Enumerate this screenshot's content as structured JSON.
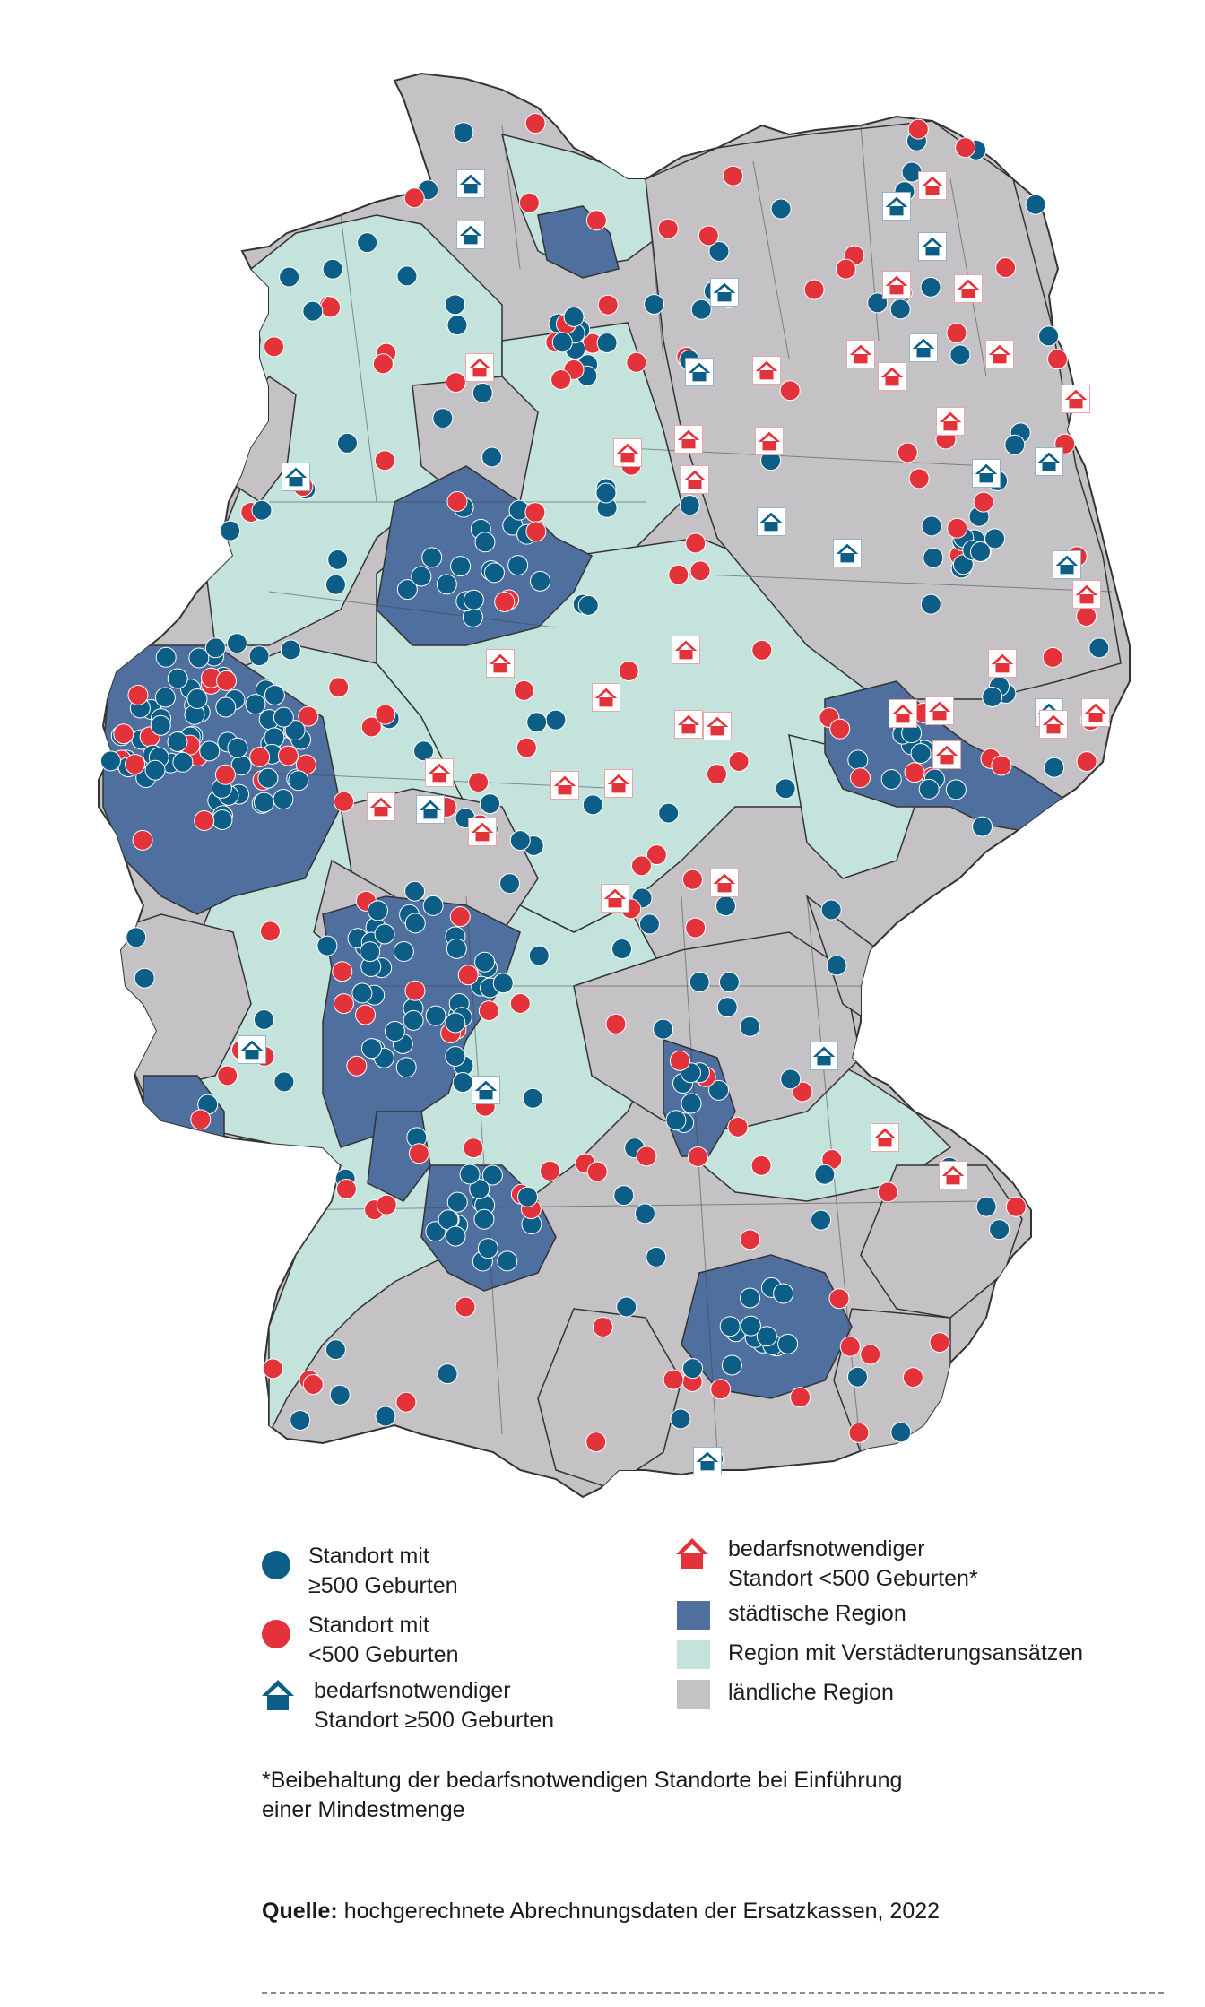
{
  "colors": {
    "large_site": "#0d5e86",
    "small_site": "#e4323a",
    "urban_region": "#4f6f9f",
    "semi_urban_region": "#c4e3dc",
    "rural_region": "#c5c2c5",
    "border": "#333333"
  },
  "map": {
    "large_sites_count_shown": 300,
    "small_sites_count_shown": 160,
    "icon_large": "house-icon-blue",
    "icon_small": "house-icon-red"
  },
  "legend": {
    "large_site": {
      "line1": "Standort mit",
      "line2": "≥500 Geburten"
    },
    "small_site": {
      "line1": "Standort mit",
      "line2": "<500 Geburten"
    },
    "needed_large": {
      "line1": "bedarfsnotwendiger",
      "line2": "Standort ≥500 Geburten"
    },
    "needed_small": {
      "line1": "bedarfsnotwendiger",
      "line2": "Standort <500 Geburten*"
    },
    "urban": "städtische Region",
    "semi_urban": "Region mit Verstädterungsansätzen",
    "rural": "ländliche Region"
  },
  "footnote": {
    "line1": "*Beibehaltung der bedarfsnotwendigen Standorte bei Einführung",
    "line2": "einer Mindestmenge"
  },
  "source": {
    "label": "Quelle:",
    "text": " hochgerechnete Abrechnungsdaten der Ersatzkassen, 2022"
  }
}
